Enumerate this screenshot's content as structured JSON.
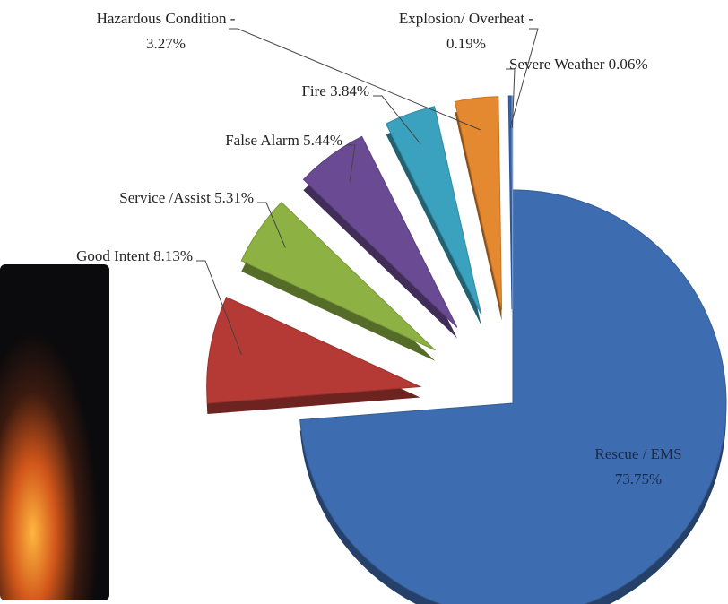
{
  "chart_data": {
    "type": "pie",
    "categories": [
      "Rescue / EMS",
      "Good Intent",
      "Service /Assist",
      "False Alarm",
      "Fire",
      "Hazardous Condition -",
      "Explosion/ Overheat -",
      "Severe Weather"
    ],
    "values": [
      73.75,
      8.13,
      5.31,
      5.44,
      3.84,
      3.27,
      0.19,
      0.06
    ],
    "value_labels": [
      "73.75%",
      "8.13%",
      "5.31%",
      "5.44%",
      "3.84%",
      "3.27%",
      "0.19%",
      "0.06%"
    ],
    "colors": [
      "#3d6cb0",
      "#b53a35",
      "#8db243",
      "#6a4b93",
      "#3aa2be",
      "#e4892f",
      "#2e64b5",
      "#9fb4d8"
    ]
  }
}
